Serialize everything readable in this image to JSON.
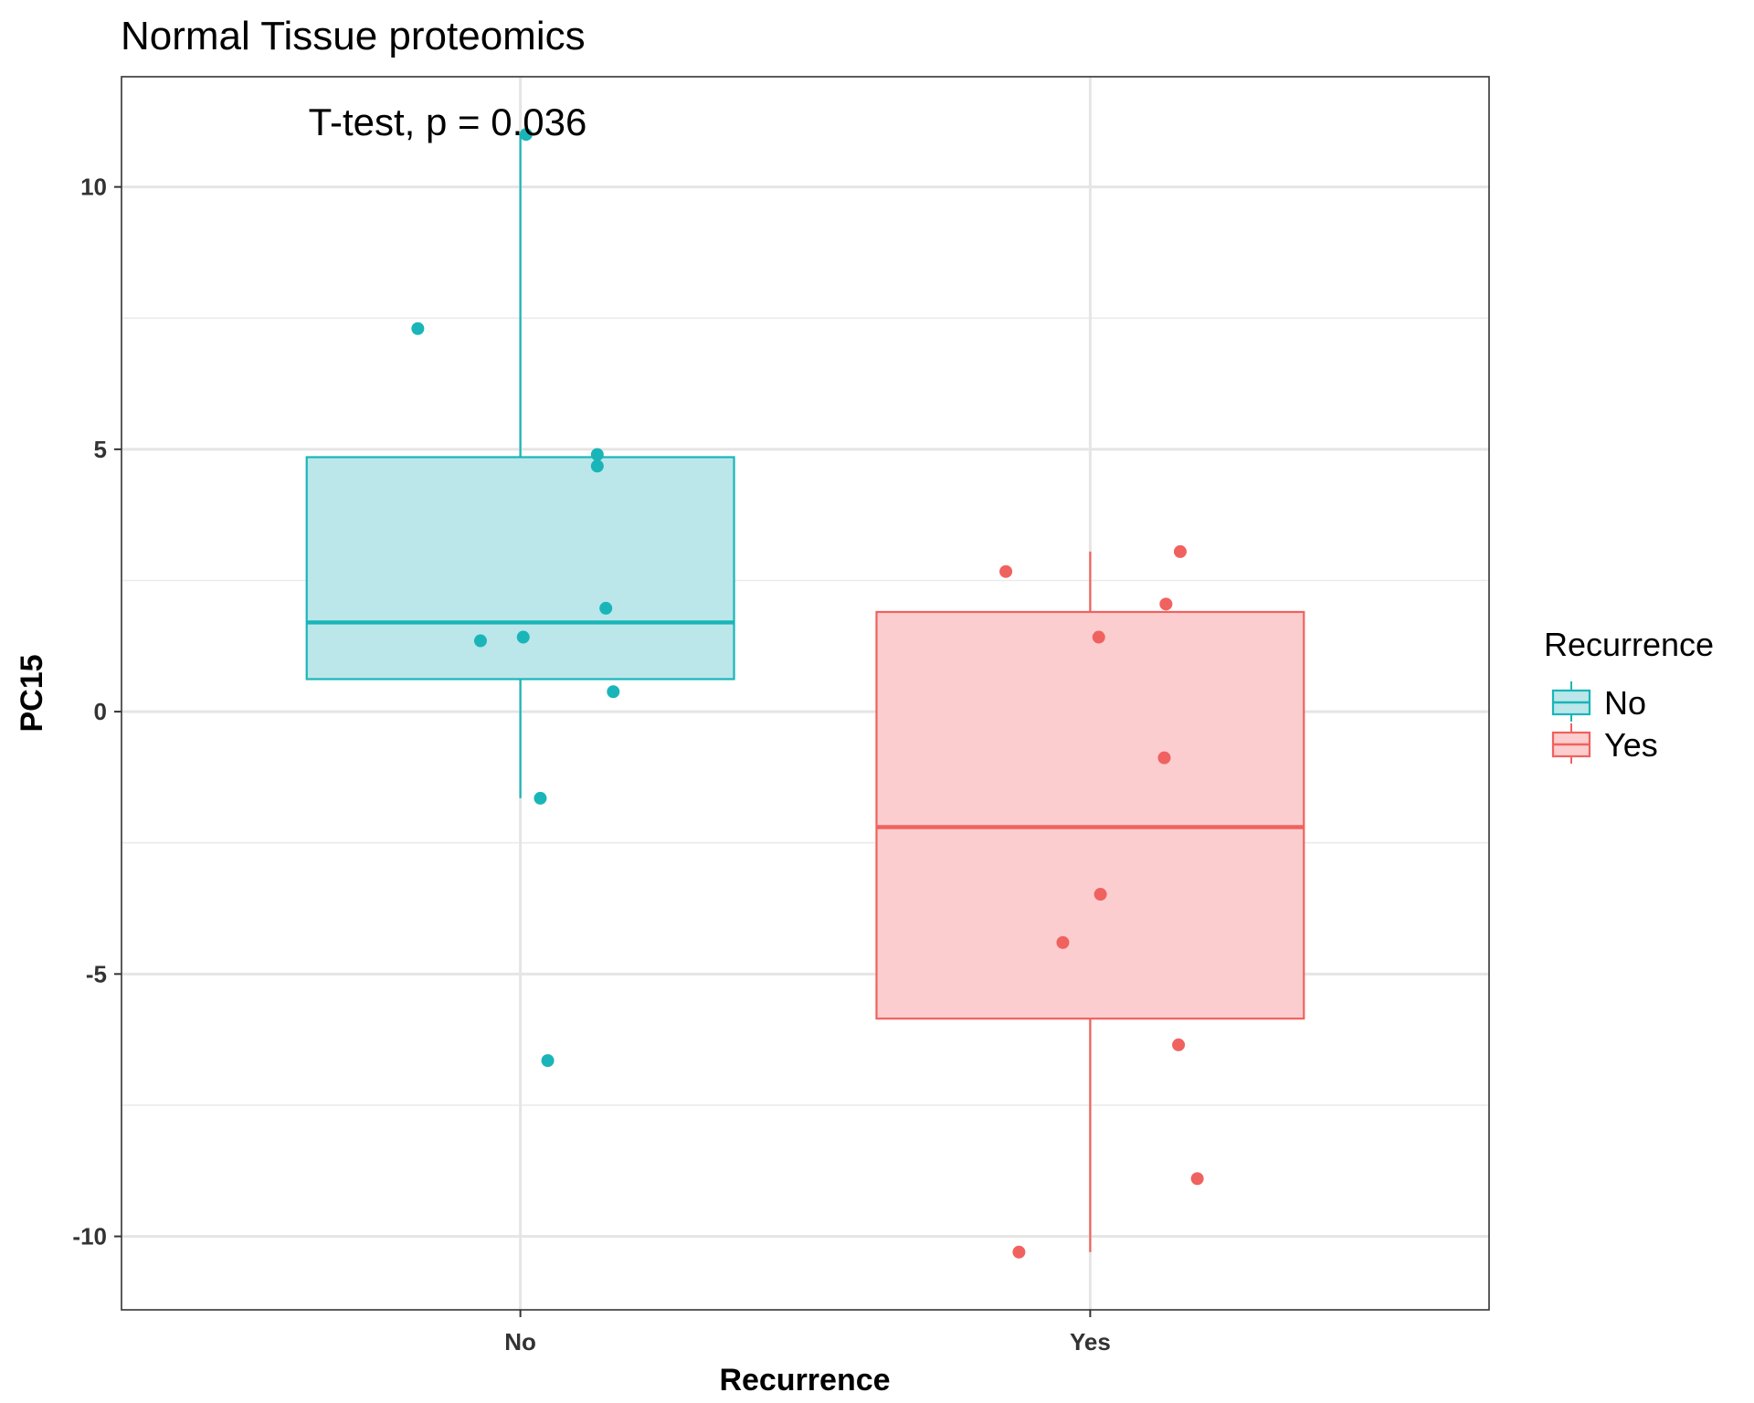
{
  "chart_data": {
    "type": "box",
    "title": "Normal Tissue proteomics",
    "annotation": "T-test, p = 0.036",
    "xlabel": "Recurrence",
    "ylabel": "PC15",
    "categories": [
      "No",
      "Yes"
    ],
    "ylim": [
      -11.4,
      12.1
    ],
    "yticks": [
      -10,
      -5,
      0,
      5,
      10
    ],
    "grid": true,
    "legend": {
      "title": "Recurrence",
      "position": "right",
      "entries": [
        "No",
        "Yes"
      ]
    },
    "series": [
      {
        "name": "No",
        "color": "#1ab5b8",
        "fill": "#bbe7ea",
        "box": {
          "whisker_low": -1.65,
          "q1": 0.62,
          "median": 1.7,
          "q3": 4.85,
          "whisker_high": 11.0
        },
        "points": [
          {
            "x": -0.18,
            "y": 7.3
          },
          {
            "x": -0.07,
            "y": 1.35
          },
          {
            "x": 0.005,
            "y": 1.42
          },
          {
            "x": 0.01,
            "y": 11.0
          },
          {
            "x": 0.035,
            "y": -1.65
          },
          {
            "x": 0.048,
            "y": -6.65
          },
          {
            "x": 0.135,
            "y": 4.9
          },
          {
            "x": 0.135,
            "y": 4.68
          },
          {
            "x": 0.15,
            "y": 1.97
          },
          {
            "x": 0.163,
            "y": 0.38
          }
        ]
      },
      {
        "name": "Yes",
        "color": "#f0625f",
        "fill": "#fccdce",
        "box": {
          "whisker_low": -10.3,
          "q1": -5.85,
          "median": -2.2,
          "q3": 1.9,
          "whisker_high": 3.05
        },
        "points": [
          {
            "x": -0.148,
            "y": 2.67
          },
          {
            "x": -0.125,
            "y": -10.3
          },
          {
            "x": -0.048,
            "y": -4.4
          },
          {
            "x": 0.015,
            "y": 1.42
          },
          {
            "x": 0.018,
            "y": -3.48
          },
          {
            "x": 0.13,
            "y": -0.88
          },
          {
            "x": 0.133,
            "y": 2.05
          },
          {
            "x": 0.155,
            "y": -6.35
          },
          {
            "x": 0.158,
            "y": 3.05
          },
          {
            "x": 0.188,
            "y": -8.9
          }
        ]
      }
    ]
  }
}
